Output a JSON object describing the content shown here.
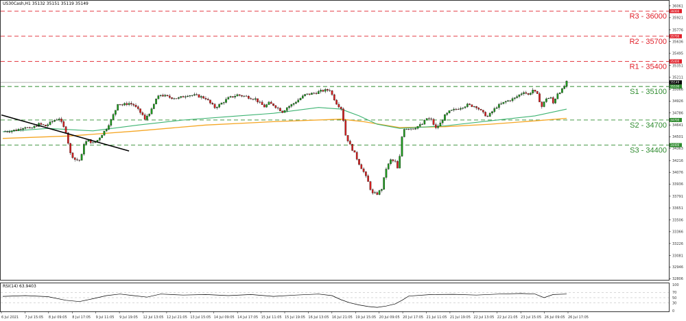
{
  "chart_data": {
    "type": "candlestick",
    "symbol_header": "US30Cash,H1  35132 35151 35119 35149",
    "y_range": [
      32800,
      36100
    ],
    "y_ticks": [
      "36061",
      "35921",
      "35776",
      "35636",
      "35495",
      "35351",
      "35211",
      "35066",
      "34926",
      "34786",
      "34641",
      "34501",
      "34363",
      "34216",
      "34076",
      "33936",
      "33791",
      "33651",
      "33506",
      "33366",
      "33226",
      "33081",
      "32946",
      "32806"
    ],
    "x_ticks": [
      "6 Jul 2021",
      "7 Jul 15:05",
      "8 Jul 09:05",
      "8 Jul 17:05",
      "9 Jul 11:05",
      "9 Jul 19:05",
      "12 Jul 13:05",
      "12 Jul 21:05",
      "13 Jul 15:05",
      "14 Jul 09:05",
      "14 Jul 17:05",
      "15 Jul 11:05",
      "15 Jul 19:05",
      "16 Jul 13:05",
      "16 Jul 21:05",
      "19 Jul 15:05",
      "20 Jul 09:05",
      "20 Jul 17:05",
      "21 Jul 11:05",
      "21 Jul 19:05",
      "22 Jul 13:05",
      "22 Jul 21:05",
      "23 Jul 15:05",
      "26 Jul 09:05",
      "26 Jul 17:05"
    ],
    "levels": [
      {
        "label": "R3 - 36000",
        "value": 36000,
        "tag": "36000",
        "color": "#e0202a"
      },
      {
        "label": "R2 - 35700",
        "value": 35700,
        "tag": "35700",
        "color": "#e0202a"
      },
      {
        "label": "R1 - 35400",
        "value": 35400,
        "tag": "35400",
        "color": "#e0202a"
      },
      {
        "label": "S1 - 35100",
        "value": 35100,
        "tag": "35100",
        "color": "#2e8b2e"
      },
      {
        "label": "S2 - 34700",
        "value": 34700,
        "tag": "34700",
        "color": "#2e8b2e"
      },
      {
        "label": "S3 - 34400",
        "value": 34400,
        "tag": "34400",
        "color": "#2e8b2e"
      }
    ],
    "current_price": {
      "value": 35149,
      "tag": "35149"
    },
    "close_path": [
      [
        0,
        34560
      ],
      [
        6,
        34580
      ],
      [
        10,
        34620
      ],
      [
        12,
        34590
      ],
      [
        16,
        34650
      ],
      [
        19,
        34630
      ],
      [
        23,
        34700
      ],
      [
        25,
        34720
      ],
      [
        28,
        34560
      ],
      [
        30,
        34300
      ],
      [
        32,
        34230
      ],
      [
        34,
        34220
      ],
      [
        35,
        34280
      ],
      [
        36,
        34420
      ],
      [
        38,
        34460
      ],
      [
        40,
        34420
      ],
      [
        42,
        34460
      ],
      [
        44,
        34530
      ],
      [
        46,
        34600
      ],
      [
        48,
        34700
      ],
      [
        50,
        34820
      ],
      [
        51,
        34900
      ],
      [
        53,
        34880
      ],
      [
        56,
        34900
      ],
      [
        58,
        34880
      ],
      [
        60,
        34820
      ],
      [
        62,
        34760
      ],
      [
        63,
        34700
      ],
      [
        64,
        34750
      ],
      [
        66,
        34820
      ],
      [
        68,
        34950
      ],
      [
        70,
        35000
      ],
      [
        74,
        34970
      ],
      [
        78,
        34960
      ],
      [
        82,
        35000
      ],
      [
        86,
        34990
      ],
      [
        90,
        34960
      ],
      [
        92,
        34900
      ],
      [
        94,
        34850
      ],
      [
        96,
        34880
      ],
      [
        98,
        34920
      ],
      [
        100,
        34960
      ],
      [
        104,
        35000
      ],
      [
        108,
        34980
      ],
      [
        112,
        34950
      ],
      [
        114,
        34900
      ],
      [
        116,
        34860
      ],
      [
        118,
        34900
      ],
      [
        120,
        34880
      ],
      [
        122,
        34840
      ],
      [
        124,
        34800
      ],
      [
        126,
        34850
      ],
      [
        128,
        34880
      ],
      [
        130,
        34920
      ],
      [
        134,
        35000
      ],
      [
        138,
        35020
      ],
      [
        142,
        35050
      ],
      [
        145,
        35060
      ],
      [
        146,
        35000
      ],
      [
        148,
        34900
      ],
      [
        150,
        34840
      ],
      [
        151,
        34700
      ],
      [
        152,
        34520
      ],
      [
        154,
        34400
      ],
      [
        156,
        34300
      ],
      [
        158,
        34180
      ],
      [
        160,
        34080
      ],
      [
        162,
        33960
      ],
      [
        163,
        33880
      ],
      [
        164,
        33820
      ],
      [
        166,
        33820
      ],
      [
        168,
        33880
      ],
      [
        169,
        34000
      ],
      [
        170,
        34120
      ],
      [
        172,
        34220
      ],
      [
        174,
        34200
      ],
      [
        175,
        34120
      ],
      [
        176,
        34260
      ],
      [
        177,
        34500
      ],
      [
        178,
        34600
      ],
      [
        182,
        34600
      ],
      [
        186,
        34650
      ],
      [
        188,
        34720
      ],
      [
        190,
        34700
      ],
      [
        192,
        34600
      ],
      [
        194,
        34660
      ],
      [
        196,
        34750
      ],
      [
        198,
        34800
      ],
      [
        202,
        34840
      ],
      [
        206,
        34880
      ],
      [
        210,
        34860
      ],
      [
        213,
        34780
      ],
      [
        215,
        34740
      ],
      [
        217,
        34800
      ],
      [
        219,
        34860
      ],
      [
        223,
        34920
      ],
      [
        227,
        34960
      ],
      [
        231,
        35040
      ],
      [
        233,
        35000
      ],
      [
        235,
        35060
      ],
      [
        237,
        35000
      ],
      [
        239,
        34860
      ],
      [
        241,
        34960
      ],
      [
        243,
        34960
      ],
      [
        244,
        34900
      ],
      [
        246,
        35020
      ],
      [
        248,
        35060
      ],
      [
        250,
        35149
      ]
    ],
    "ma_fast": [
      [
        0,
        34560
      ],
      [
        20,
        34600
      ],
      [
        40,
        34570
      ],
      [
        60,
        34640
      ],
      [
        80,
        34700
      ],
      [
        100,
        34740
      ],
      [
        120,
        34780
      ],
      [
        140,
        34850
      ],
      [
        150,
        34830
      ],
      [
        158,
        34750
      ],
      [
        166,
        34650
      ],
      [
        176,
        34600
      ],
      [
        196,
        34630
      ],
      [
        216,
        34690
      ],
      [
        236,
        34750
      ],
      [
        250,
        34830
      ]
    ],
    "ma_slow": [
      [
        0,
        34480
      ],
      [
        30,
        34510
      ],
      [
        60,
        34570
      ],
      [
        90,
        34640
      ],
      [
        120,
        34680
      ],
      [
        150,
        34710
      ],
      [
        160,
        34680
      ],
      [
        176,
        34610
      ],
      [
        196,
        34620
      ],
      [
        216,
        34650
      ],
      [
        236,
        34690
      ],
      [
        250,
        34720
      ]
    ],
    "trendline": [
      [
        0,
        34760
      ],
      [
        56,
        34330
      ]
    ],
    "rsi": {
      "label": "RSI(14) 63.9403",
      "range": [
        0,
        100
      ],
      "ticks": [
        "100",
        "70",
        "50",
        "30",
        "0"
      ],
      "levels": [
        70,
        50,
        30
      ],
      "path": [
        [
          0,
          55
        ],
        [
          10,
          58
        ],
        [
          20,
          54
        ],
        [
          28,
          40
        ],
        [
          34,
          35
        ],
        [
          40,
          46
        ],
        [
          46,
          58
        ],
        [
          52,
          64
        ],
        [
          58,
          58
        ],
        [
          64,
          52
        ],
        [
          70,
          64
        ],
        [
          80,
          60
        ],
        [
          90,
          62
        ],
        [
          100,
          58
        ],
        [
          110,
          62
        ],
        [
          120,
          55
        ],
        [
          130,
          60
        ],
        [
          140,
          64
        ],
        [
          146,
          58
        ],
        [
          150,
          42
        ],
        [
          154,
          30
        ],
        [
          158,
          22
        ],
        [
          162,
          16
        ],
        [
          166,
          13
        ],
        [
          170,
          18
        ],
        [
          174,
          26
        ],
        [
          177,
          40
        ],
        [
          180,
          56
        ],
        [
          190,
          62
        ],
        [
          200,
          63
        ],
        [
          210,
          60
        ],
        [
          220,
          64
        ],
        [
          230,
          66
        ],
        [
          236,
          64
        ],
        [
          240,
          50
        ],
        [
          244,
          62
        ],
        [
          250,
          64
        ]
      ]
    }
  }
}
